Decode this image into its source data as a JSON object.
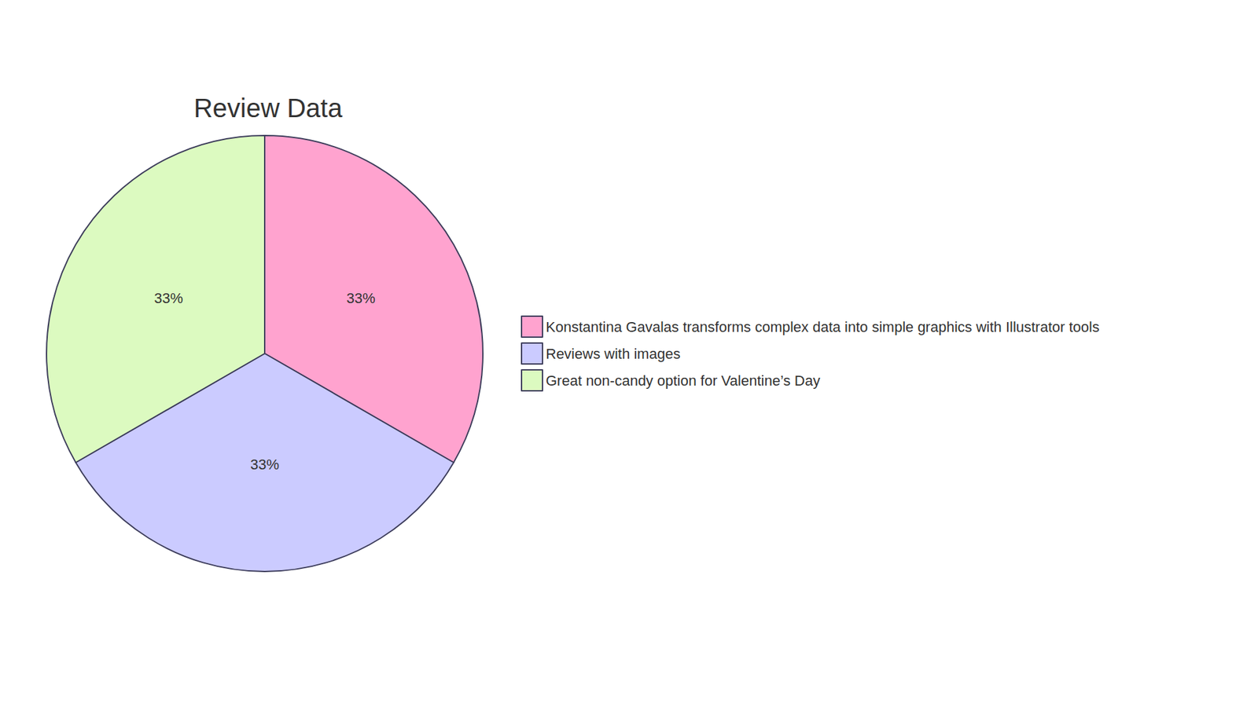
{
  "chart_data": {
    "type": "pie",
    "title": "Review Data",
    "categories": [
      "Konstantina Gavalas transforms complex data into simple graphics with Illustrator tools",
      "Reviews with images",
      "Great non-candy option for Valentine’s Day"
    ],
    "values": [
      33,
      33,
      33
    ],
    "value_labels": [
      "33%",
      "33%",
      "33%"
    ],
    "colors": [
      "#ffa3cf",
      "#cbcbff",
      "#dcfac0"
    ],
    "legend": "right",
    "data_labels": true
  }
}
